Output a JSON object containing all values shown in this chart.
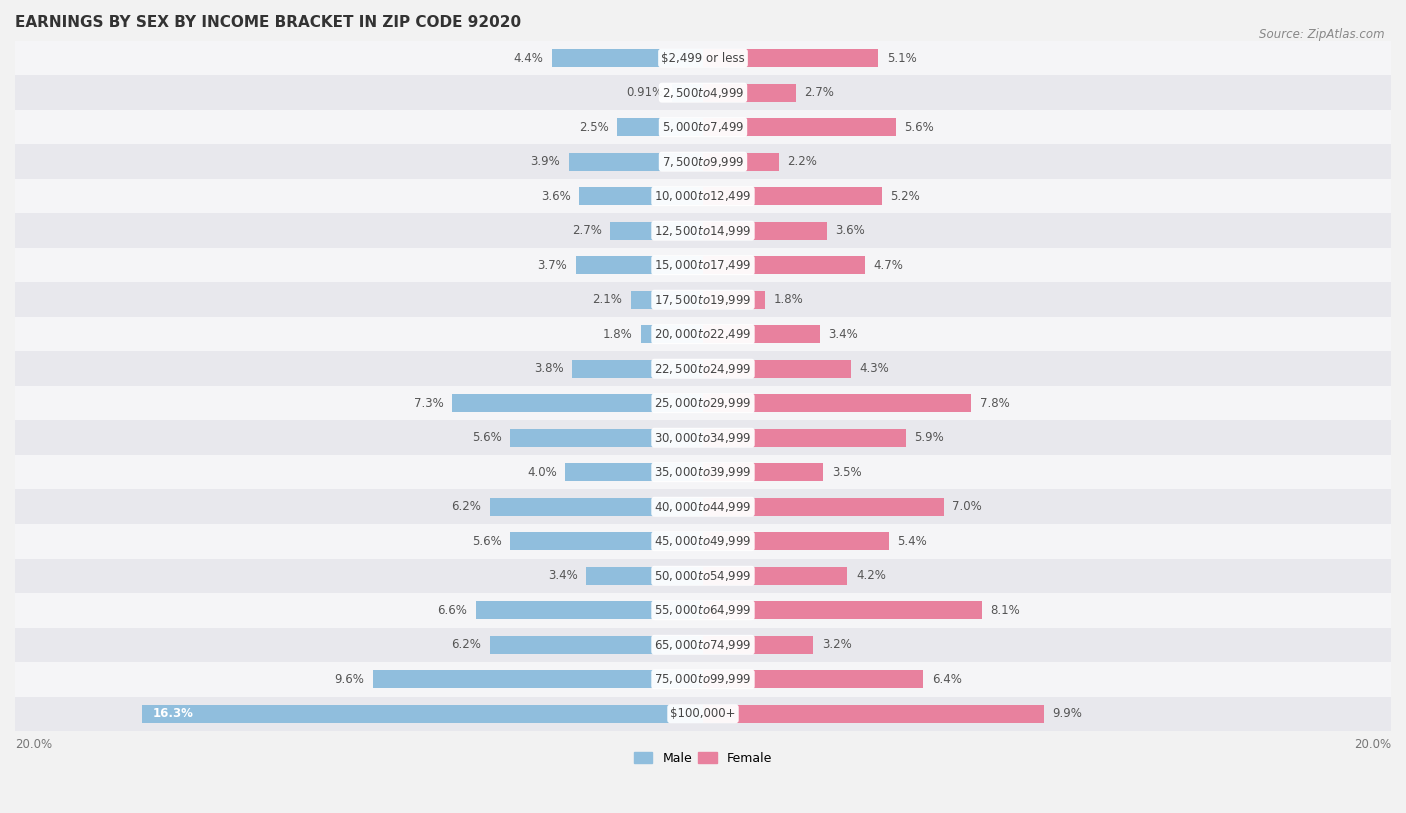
{
  "title": "EARNINGS BY SEX BY INCOME BRACKET IN ZIP CODE 92020",
  "source": "Source: ZipAtlas.com",
  "categories": [
    "$2,499 or less",
    "$2,500 to $4,999",
    "$5,000 to $7,499",
    "$7,500 to $9,999",
    "$10,000 to $12,499",
    "$12,500 to $14,999",
    "$15,000 to $17,499",
    "$17,500 to $19,999",
    "$20,000 to $22,499",
    "$22,500 to $24,999",
    "$25,000 to $29,999",
    "$30,000 to $34,999",
    "$35,000 to $39,999",
    "$40,000 to $44,999",
    "$45,000 to $49,999",
    "$50,000 to $54,999",
    "$55,000 to $64,999",
    "$65,000 to $74,999",
    "$75,000 to $99,999",
    "$100,000+"
  ],
  "male_values": [
    4.4,
    0.91,
    2.5,
    3.9,
    3.6,
    2.7,
    3.7,
    2.1,
    1.8,
    3.8,
    7.3,
    5.6,
    4.0,
    6.2,
    5.6,
    3.4,
    6.6,
    6.2,
    9.6,
    16.3
  ],
  "female_values": [
    5.1,
    2.7,
    5.6,
    2.2,
    5.2,
    3.6,
    4.7,
    1.8,
    3.4,
    4.3,
    7.8,
    5.9,
    3.5,
    7.0,
    5.4,
    4.2,
    8.1,
    3.2,
    6.4,
    9.9
  ],
  "male_labels": [
    "4.4%",
    "0.91%",
    "2.5%",
    "3.9%",
    "3.6%",
    "2.7%",
    "3.7%",
    "2.1%",
    "1.8%",
    "3.8%",
    "7.3%",
    "5.6%",
    "4.0%",
    "6.2%",
    "5.6%",
    "3.4%",
    "6.6%",
    "6.2%",
    "9.6%",
    "16.3%"
  ],
  "female_labels": [
    "5.1%",
    "2.7%",
    "5.6%",
    "2.2%",
    "5.2%",
    "3.6%",
    "4.7%",
    "1.8%",
    "3.4%",
    "4.3%",
    "7.8%",
    "5.9%",
    "3.5%",
    "7.0%",
    "5.4%",
    "4.2%",
    "8.1%",
    "3.2%",
    "6.4%",
    "9.9%"
  ],
  "male_color": "#90bedd",
  "female_color": "#e8819e",
  "row_color_light": "#f5f5f7",
  "row_color_dark": "#e8e8ed",
  "axis_max": 20.0,
  "bar_height": 0.52,
  "title_fontsize": 11,
  "label_fontsize": 8.5,
  "category_fontsize": 8.5,
  "source_fontsize": 8.5
}
